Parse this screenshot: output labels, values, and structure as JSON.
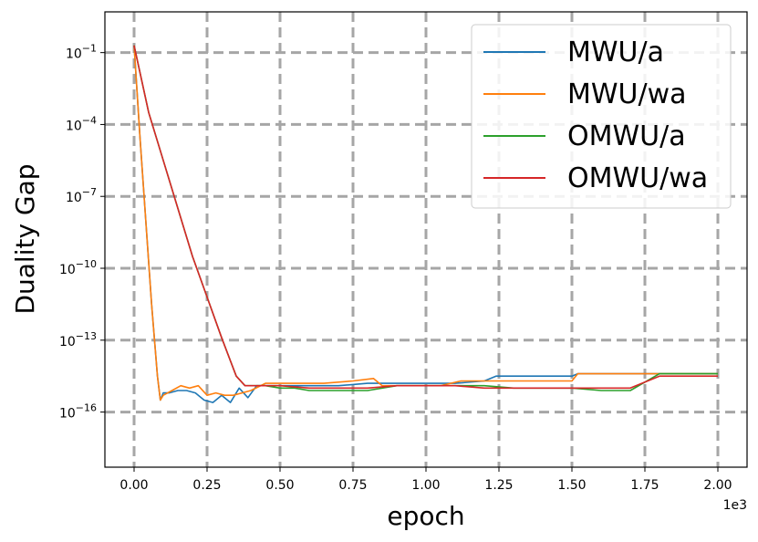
{
  "chart_data": {
    "type": "line",
    "title": "",
    "xlabel": "epoch",
    "ylabel": "Duality Gap",
    "x_offset_label": "1e3",
    "x_ticks": [
      0.0,
      0.25,
      0.5,
      0.75,
      1.0,
      1.25,
      1.5,
      1.75,
      2.0
    ],
    "x_tick_labels": [
      "0.00",
      "0.25",
      "0.50",
      "0.75",
      "1.00",
      "1.25",
      "1.50",
      "1.75",
      "2.00"
    ],
    "xlim": [
      -0.1,
      2.1
    ],
    "y_scale": "log",
    "y_ticks_exp": [
      -1,
      -4,
      -7,
      -10,
      -13,
      -16
    ],
    "y_tick_labels": [
      {
        "base": "10",
        "exp": "−1"
      },
      {
        "base": "10",
        "exp": "−4"
      },
      {
        "base": "10",
        "exp": "−7"
      },
      {
        "base": "10",
        "exp": "−10"
      },
      {
        "base": "10",
        "exp": "−13"
      },
      {
        "base": "10",
        "exp": "−16"
      }
    ],
    "ylim_exp": [
      -18.3,
      0.7
    ],
    "grid": true,
    "legend_position": "top-right",
    "series": [
      {
        "name": "MWU/a",
        "color": "#1f77b4",
        "points": [
          [
            0.0,
            -0.7
          ],
          [
            0.02,
            -4.5
          ],
          [
            0.04,
            -8.0
          ],
          [
            0.06,
            -11.5
          ],
          [
            0.08,
            -14.5
          ],
          [
            0.09,
            -15.5
          ],
          [
            0.1,
            -15.2
          ],
          [
            0.12,
            -15.2
          ],
          [
            0.15,
            -15.1
          ],
          [
            0.18,
            -15.1
          ],
          [
            0.21,
            -15.2
          ],
          [
            0.24,
            -15.5
          ],
          [
            0.27,
            -15.6
          ],
          [
            0.3,
            -15.3
          ],
          [
            0.33,
            -15.6
          ],
          [
            0.36,
            -15.0
          ],
          [
            0.39,
            -15.4
          ],
          [
            0.42,
            -14.9
          ],
          [
            0.5,
            -14.9
          ],
          [
            0.6,
            -14.9
          ],
          [
            0.7,
            -14.9
          ],
          [
            0.8,
            -14.8
          ],
          [
            0.9,
            -14.8
          ],
          [
            1.0,
            -14.8
          ],
          [
            1.1,
            -14.8
          ],
          [
            1.2,
            -14.7
          ],
          [
            1.24,
            -14.5
          ],
          [
            1.3,
            -14.5
          ],
          [
            1.4,
            -14.5
          ],
          [
            1.5,
            -14.5
          ],
          [
            1.52,
            -14.4
          ],
          [
            1.6,
            -14.4
          ],
          [
            1.7,
            -14.4
          ],
          [
            1.8,
            -14.4
          ],
          [
            1.9,
            -14.4
          ],
          [
            2.0,
            -14.4
          ]
        ]
      },
      {
        "name": "MWU/wa",
        "color": "#ff7f0e",
        "points": [
          [
            0.0,
            -0.7
          ],
          [
            0.02,
            -4.5
          ],
          [
            0.04,
            -8.0
          ],
          [
            0.06,
            -11.5
          ],
          [
            0.08,
            -14.5
          ],
          [
            0.09,
            -15.5
          ],
          [
            0.1,
            -15.3
          ],
          [
            0.13,
            -15.1
          ],
          [
            0.16,
            -14.9
          ],
          [
            0.19,
            -15.0
          ],
          [
            0.22,
            -14.9
          ],
          [
            0.25,
            -15.3
          ],
          [
            0.28,
            -15.2
          ],
          [
            0.31,
            -15.3
          ],
          [
            0.34,
            -15.3
          ],
          [
            0.37,
            -15.2
          ],
          [
            0.4,
            -15.1
          ],
          [
            0.45,
            -14.8
          ],
          [
            0.55,
            -14.8
          ],
          [
            0.65,
            -14.8
          ],
          [
            0.75,
            -14.7
          ],
          [
            0.82,
            -14.6
          ],
          [
            0.85,
            -14.9
          ],
          [
            0.95,
            -14.9
          ],
          [
            1.05,
            -14.9
          ],
          [
            1.12,
            -14.7
          ],
          [
            1.2,
            -14.7
          ],
          [
            1.3,
            -14.7
          ],
          [
            1.4,
            -14.7
          ],
          [
            1.5,
            -14.7
          ],
          [
            1.52,
            -14.4
          ],
          [
            1.6,
            -14.4
          ],
          [
            1.7,
            -14.4
          ],
          [
            1.8,
            -14.4
          ],
          [
            1.9,
            -14.4
          ],
          [
            2.0,
            -14.4
          ]
        ]
      },
      {
        "name": "OMWU/a",
        "color": "#2ca02c",
        "points": [
          [
            0.0,
            -0.7
          ],
          [
            0.05,
            -3.5
          ],
          [
            0.1,
            -5.5
          ],
          [
            0.15,
            -7.5
          ],
          [
            0.2,
            -9.5
          ],
          [
            0.25,
            -11.2
          ],
          [
            0.3,
            -12.9
          ],
          [
            0.35,
            -14.5
          ],
          [
            0.38,
            -14.9
          ],
          [
            0.45,
            -14.9
          ],
          [
            0.5,
            -15.0
          ],
          [
            0.55,
            -15.0
          ],
          [
            0.6,
            -15.1
          ],
          [
            0.7,
            -15.1
          ],
          [
            0.8,
            -15.1
          ],
          [
            0.9,
            -14.9
          ],
          [
            1.0,
            -14.9
          ],
          [
            1.1,
            -14.9
          ],
          [
            1.2,
            -14.9
          ],
          [
            1.3,
            -15.0
          ],
          [
            1.4,
            -15.0
          ],
          [
            1.5,
            -15.0
          ],
          [
            1.6,
            -15.1
          ],
          [
            1.7,
            -15.1
          ],
          [
            1.8,
            -14.4
          ],
          [
            1.9,
            -14.4
          ],
          [
            2.0,
            -14.4
          ]
        ]
      },
      {
        "name": "OMWU/wa",
        "color": "#d62728",
        "points": [
          [
            0.0,
            -0.7
          ],
          [
            0.05,
            -3.5
          ],
          [
            0.1,
            -5.5
          ],
          [
            0.15,
            -7.5
          ],
          [
            0.2,
            -9.5
          ],
          [
            0.25,
            -11.2
          ],
          [
            0.3,
            -12.9
          ],
          [
            0.35,
            -14.5
          ],
          [
            0.38,
            -14.9
          ],
          [
            0.45,
            -14.9
          ],
          [
            0.5,
            -14.9
          ],
          [
            0.6,
            -15.0
          ],
          [
            0.7,
            -15.0
          ],
          [
            0.8,
            -15.0
          ],
          [
            0.9,
            -14.9
          ],
          [
            1.0,
            -14.9
          ],
          [
            1.1,
            -14.9
          ],
          [
            1.2,
            -15.0
          ],
          [
            1.3,
            -15.0
          ],
          [
            1.4,
            -15.0
          ],
          [
            1.5,
            -15.0
          ],
          [
            1.6,
            -15.0
          ],
          [
            1.7,
            -15.0
          ],
          [
            1.8,
            -14.5
          ],
          [
            1.9,
            -14.5
          ],
          [
            2.0,
            -14.5
          ]
        ]
      }
    ]
  }
}
